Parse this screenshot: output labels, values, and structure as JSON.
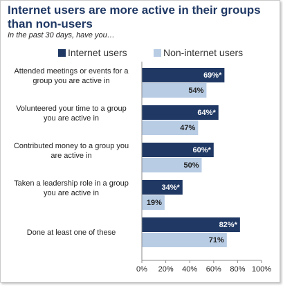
{
  "chart_data": {
    "type": "bar",
    "orientation": "horizontal",
    "title": "Internet users are more active in their groups than non-users",
    "subtitle": "In the past 30 days, have you…",
    "categories": [
      [
        "Attended meetings or events for a",
        "group you are active in"
      ],
      [
        "Volunteered your time to a group",
        "you are active in"
      ],
      [
        "Contributed money to a group you",
        "are active in"
      ],
      [
        "Taken a leadership role in a group",
        "you are active in"
      ],
      [
        "Done at least one of these"
      ]
    ],
    "series": [
      {
        "name": "Internet users",
        "color": "#1f3864",
        "values": [
          69,
          64,
          60,
          34,
          82
        ],
        "labels": [
          "69%*",
          "64%*",
          "60%*",
          "34%*",
          "82%*"
        ]
      },
      {
        "name": "Non-internet users",
        "color": "#b8cce4",
        "values": [
          54,
          47,
          50,
          19,
          71
        ],
        "labels": [
          "54%",
          "47%",
          "50%",
          "19%",
          "71%"
        ]
      }
    ],
    "xlim": [
      0,
      100
    ],
    "ticks": [
      "0%",
      "20%",
      "40%",
      "60%",
      "80%",
      "100%"
    ],
    "legend_position": "top",
    "grid": false
  }
}
